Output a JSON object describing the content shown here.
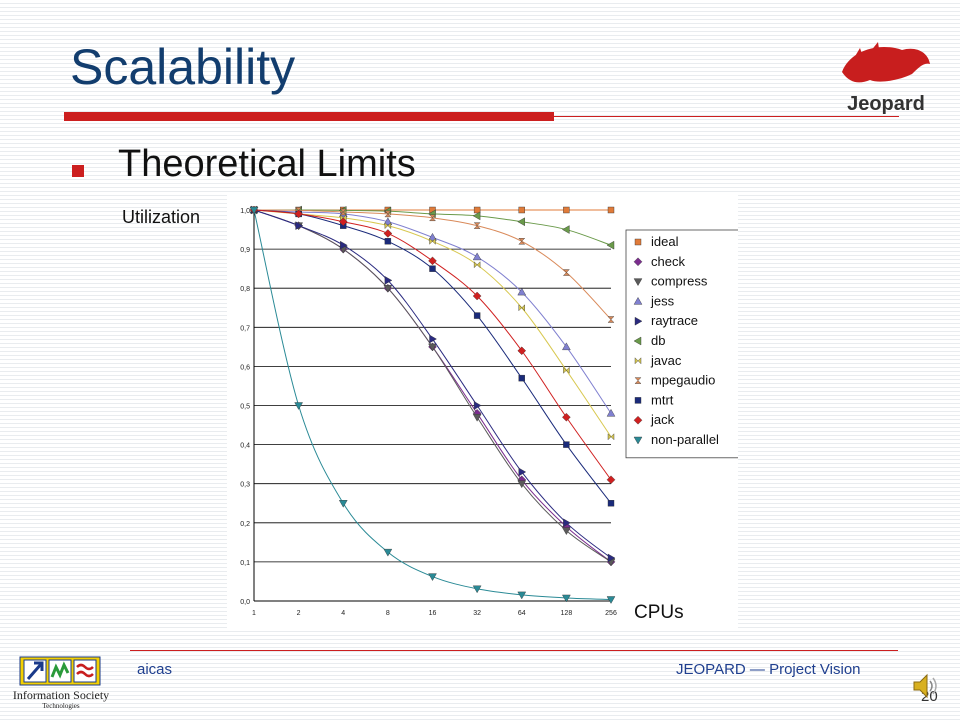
{
  "slide": {
    "title": "Scalability",
    "bullet": "Theoretical Limits",
    "footer_left": "aicas",
    "footer_right": "JEOPARD — Project Vision",
    "page_number": "20",
    "logo_text": "Jeopard",
    "ist_logo_text": "Information Society",
    "ist_logo_sub": "Technologies"
  },
  "colors": {
    "title": "#123d6e",
    "accent": "#cc1f1f",
    "footer_text": "#1f3f8f"
  },
  "chart_data": {
    "type": "line",
    "xlabel": "CPUs",
    "ylabel": "Utilization",
    "x": [
      1,
      2,
      4,
      8,
      16,
      32,
      64,
      128,
      256
    ],
    "x_scale": "log2",
    "ylim": [
      0,
      1
    ],
    "y_ticks": [
      "0,0",
      "0,1",
      "0,2",
      "0,3",
      "0,4",
      "0,5",
      "0,6",
      "0,7",
      "0,8",
      "0,9",
      "1,0"
    ],
    "grid": "horizontal",
    "legend_position": "right",
    "series": [
      {
        "name": "ideal",
        "color": "#e07b39",
        "marker": "square",
        "values": [
          1.0,
          1.0,
          1.0,
          1.0,
          1.0,
          1.0,
          1.0,
          1.0,
          1.0
        ]
      },
      {
        "name": "check",
        "color": "#7b2d8e",
        "marker": "diamond",
        "values": [
          1.0,
          0.96,
          0.9,
          0.8,
          0.65,
          0.48,
          0.31,
          0.19,
          0.1
        ]
      },
      {
        "name": "compress",
        "color": "#5a5a5a",
        "marker": "triangle-down",
        "values": [
          1.0,
          0.96,
          0.9,
          0.8,
          0.65,
          0.47,
          0.3,
          0.18,
          0.1
        ]
      },
      {
        "name": "jess",
        "color": "#8080d0",
        "marker": "triangle-up",
        "values": [
          1.0,
          0.995,
          0.99,
          0.97,
          0.93,
          0.88,
          0.79,
          0.65,
          0.48
        ]
      },
      {
        "name": "raytrace",
        "color": "#2a2a80",
        "marker": "triangle-right",
        "values": [
          1.0,
          0.96,
          0.91,
          0.82,
          0.67,
          0.5,
          0.33,
          0.2,
          0.11
        ]
      },
      {
        "name": "db",
        "color": "#6a9a4a",
        "marker": "triangle-left",
        "values": [
          1.0,
          1.0,
          0.999,
          0.997,
          0.99,
          0.985,
          0.97,
          0.95,
          0.91
        ]
      },
      {
        "name": "javac",
        "color": "#d8c850",
        "marker": "bowtie",
        "values": [
          1.0,
          0.99,
          0.98,
          0.96,
          0.92,
          0.86,
          0.75,
          0.59,
          0.42
        ]
      },
      {
        "name": "mpegaudio",
        "color": "#d98a5a",
        "marker": "hourglass",
        "values": [
          1.0,
          0.999,
          0.995,
          0.99,
          0.98,
          0.96,
          0.92,
          0.84,
          0.72
        ]
      },
      {
        "name": "mtrt",
        "color": "#1a2a7a",
        "marker": "square",
        "values": [
          1.0,
          0.99,
          0.96,
          0.92,
          0.85,
          0.73,
          0.57,
          0.4,
          0.25
        ]
      },
      {
        "name": "jack",
        "color": "#d02020",
        "marker": "diamond",
        "values": [
          1.0,
          0.99,
          0.97,
          0.94,
          0.87,
          0.78,
          0.64,
          0.47,
          0.31
        ]
      },
      {
        "name": "non-parallel",
        "color": "#2a8a96",
        "marker": "triangle-down",
        "values": [
          1.0,
          0.5,
          0.25,
          0.125,
          0.0625,
          0.03125,
          0.015625,
          0.0078125,
          0.00390625
        ]
      }
    ]
  }
}
